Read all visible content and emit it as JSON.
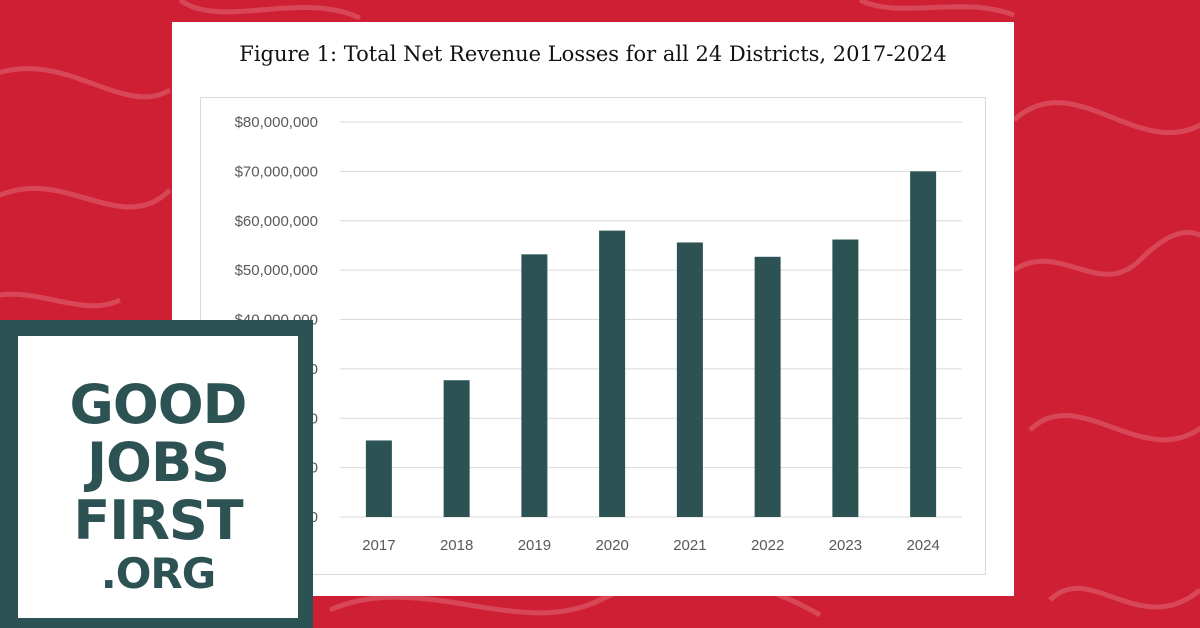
{
  "colors": {
    "background": "#cf1f34",
    "bar": "#2d5253",
    "logo": "#2d5253",
    "gridline": "#d9d9d9"
  },
  "logo": {
    "lines": [
      "GOOD",
      "JOBS",
      "FIRST",
      ".ORG"
    ]
  },
  "chart_data": {
    "type": "bar",
    "title": "Figure 1: Total Net Revenue Losses for all 24 Districts, 2017-2024",
    "xlabel": "",
    "ylabel": "",
    "categories": [
      "2017",
      "2018",
      "2019",
      "2020",
      "2021",
      "2022",
      "2023",
      "2024"
    ],
    "values": [
      15500000,
      27700000,
      53200000,
      58000000,
      55600000,
      52700000,
      56200000,
      70000000
    ],
    "ylim": [
      0,
      80000000
    ],
    "yticks": [
      0,
      10000000,
      20000000,
      30000000,
      40000000,
      50000000,
      60000000,
      70000000,
      80000000
    ],
    "ytick_labels": [
      "$0",
      "$10,000,000",
      "$20,000,000",
      "$30,000,000",
      "$40,000,000",
      "$50,000,000",
      "$60,000,000",
      "$70,000,000",
      "$80,000,000"
    ],
    "grid": true,
    "legend": "none"
  }
}
